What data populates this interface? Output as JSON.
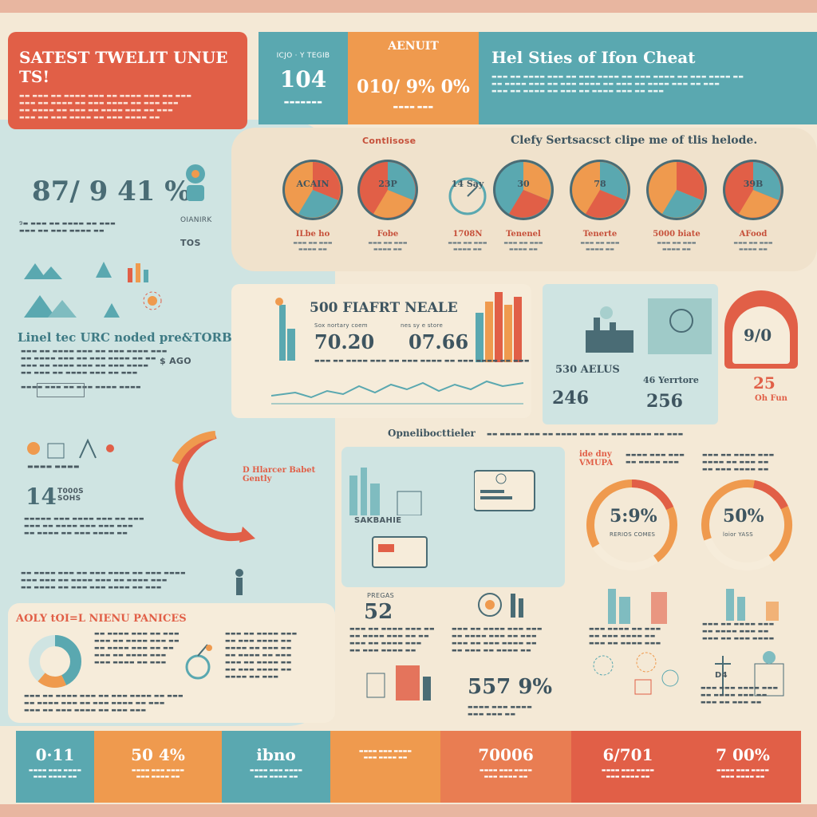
{
  "header": {
    "left_title": "SATEST TWELIT UNUE TS!",
    "box1_num": "104",
    "box1_top": "ICJO · Y TEGIB",
    "box2_title": "AENUIT",
    "box2_num": "010/ 9% 0%",
    "right_title": "Hel Sties of Ifon Cheat"
  },
  "left": {
    "big_percent": "87/ 9 41 %",
    "small_head": "OIANIRK",
    "small_head2": "TOS",
    "section_title": "Linel tec URC noded pre&TORB",
    "tag_ago": "$ AGO",
    "stat_14": "14",
    "stat_14_label": "T000S SOHS",
    "arc_label": "D Hlarcer Babet Gently",
    "risk_title": "AOLY tOI=L NIENU PANICES"
  },
  "pies": {
    "section_title": "Clefy Sertsacsct clipe me of tlis helode.",
    "left_label": "Contlisose",
    "items": [
      {
        "label": "ILbe ho",
        "inner": "ACAIN"
      },
      {
        "label": "Fobe",
        "inner": "23P"
      },
      {
        "label": "1708N",
        "inner": "14 Say"
      },
      {
        "label": "Tenenel",
        "inner": "30"
      },
      {
        "label": "Tenerte",
        "inner": "78"
      },
      {
        "label": "5000 biate",
        "inner": ""
      },
      {
        "label": "AFood",
        "inner": "39B"
      }
    ]
  },
  "middle": {
    "title": "500 FIAFRT NEALE",
    "val1": "70.20",
    "val2": "07.66",
    "cap1": "Sox nortary coem",
    "cap2": "nes sy e store"
  },
  "right_block": {
    "stat1": "530 AELUS",
    "stat2": "246",
    "stat3": "46 Yerrtore",
    "stat4": "256",
    "pct": "9/0",
    "num25": "25",
    "oh_fun": "Oh Fun"
  },
  "lower_center": {
    "banner": "Opnelibocttieler",
    "sub_label": "SAKBAHIE",
    "gauge1": "5:9%",
    "gauge1_cap": "RERIOS COMES",
    "gauge2": "50%",
    "gauge2_cap": "loior YASS",
    "say_label": "ide dny VMUPA",
    "num52": "52",
    "num52_cap": "PREGAS",
    "num557": "557 9%",
    "d4": "D4"
  },
  "footer": [
    {
      "num": "0·11",
      "color": "#5aa8b0"
    },
    {
      "num": "50 4%",
      "color": "#ef9a4e"
    },
    {
      "num": "ibno",
      "color": "#5aa8b0"
    },
    {
      "num": "",
      "color": "#ef9a4e"
    },
    {
      "num": "70006",
      "color": "#e97d52"
    },
    {
      "num": "6/701",
      "color": "#e15f47"
    },
    {
      "num": "7 00%",
      "color": "#e15f47"
    }
  ],
  "colors": {
    "teal": "#5aa8b0",
    "orange": "#ef9a4e",
    "red": "#e15f47",
    "cream": "#f4e9d6"
  }
}
